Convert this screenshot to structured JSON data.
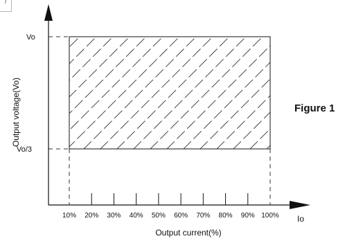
{
  "figure_label": "Figure 1",
  "corner_glyph": "/",
  "chart_data": {
    "type": "area",
    "xlabel": "Output current(%)",
    "ylabel": "Output voltage(Vo)",
    "x_axis_symbol": "Io",
    "x_ticks": [
      "10%",
      "20%",
      "30%",
      "40%",
      "50%",
      "60%",
      "70%",
      "80%",
      "90%",
      "100%"
    ],
    "y_ticks": [
      "Vo/3",
      "Vo"
    ],
    "xlim": [
      10,
      100
    ],
    "region": {
      "x": [
        10,
        100
      ],
      "y": [
        "Vo/3",
        "Vo"
      ],
      "fill": "diagonal-hatch"
    },
    "grid": false,
    "colors": {
      "line": "#111111",
      "dash": "#333333"
    }
  }
}
